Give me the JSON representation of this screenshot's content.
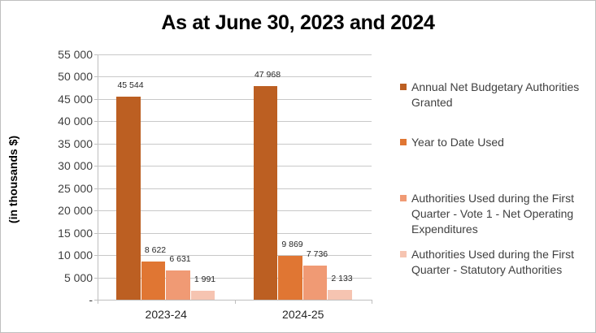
{
  "chart_data": {
    "type": "bar",
    "title": "As at June 30, 2023 and 2024",
    "xlabel": "",
    "ylabel": "(in thousands $)",
    "ylim": [
      0,
      55000
    ],
    "yticks": [
      0,
      5000,
      10000,
      15000,
      20000,
      25000,
      30000,
      35000,
      40000,
      45000,
      50000,
      55000
    ],
    "ytick_labels": [
      "-",
      "5 000",
      "10 000",
      "15 000",
      "20 000",
      "25 000",
      "30 000",
      "35 000",
      "40 000",
      "45 000",
      "50 000",
      "55 000"
    ],
    "grid": true,
    "legend_position": "right",
    "categories": [
      "2023-24",
      "2024-25"
    ],
    "series": [
      {
        "name": "Annual Net Budgetary Authorities Granted",
        "color": "#bc5f22",
        "values": [
          45544,
          47968
        ],
        "labels": [
          "45 544",
          "47 968"
        ]
      },
      {
        "name": "Year to Date Used",
        "color": "#e07633",
        "values": [
          8622,
          9869
        ],
        "labels": [
          "8 622",
          "9 869"
        ]
      },
      {
        "name": "Authorities Used during the First Quarter - Vote 1 - Net Operating Expenditures",
        "color": "#f09a74",
        "values": [
          6631,
          7736
        ],
        "labels": [
          "6 631",
          "7 736"
        ]
      },
      {
        "name": "Authorities Used during the First Quarter  - Statutory Authorities",
        "color": "#f6c4b1",
        "values": [
          1991,
          2133
        ],
        "labels": [
          "1 991",
          "2 133"
        ]
      }
    ]
  },
  "legend": {
    "items": [
      {
        "label": "Annual Net Budgetary Authorities Granted",
        "color": "#bc5f22"
      },
      {
        "label": "Year to Date Used",
        "color": "#e07633"
      },
      {
        "label": "Authorities Used during the First Quarter - Vote 1 - Net Operating Expenditures",
        "color": "#f09a74"
      },
      {
        "label": "Authorities Used during the First Quarter  - Statutory Authorities",
        "color": "#f6c4b1"
      }
    ]
  }
}
